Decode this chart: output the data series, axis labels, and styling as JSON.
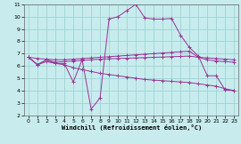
{
  "xlabel": "Windchill (Refroidissement éolien,°C)",
  "xlim": [
    -0.5,
    23.5
  ],
  "ylim": [
    2,
    11
  ],
  "xticks": [
    0,
    1,
    2,
    3,
    4,
    5,
    6,
    7,
    8,
    9,
    10,
    11,
    12,
    13,
    14,
    15,
    16,
    17,
    18,
    19,
    20,
    21,
    22,
    23
  ],
  "yticks": [
    2,
    3,
    4,
    5,
    6,
    7,
    8,
    9,
    10,
    11
  ],
  "background_color": "#c8eced",
  "line_color": "#993399",
  "grid_color": "#9dd4d4",
  "lines": [
    {
      "x": [
        0,
        1,
        2,
        3,
        4,
        5,
        6,
        7,
        8,
        9,
        10,
        11,
        12,
        13,
        14,
        15,
        16,
        17,
        18,
        19,
        20,
        21,
        22,
        23
      ],
      "y": [
        6.7,
        6.1,
        6.5,
        6.2,
        6.2,
        4.7,
        6.5,
        2.5,
        3.4,
        9.8,
        10.0,
        10.5,
        11.0,
        9.9,
        9.8,
        9.8,
        9.85,
        8.5,
        7.5,
        6.8,
        5.2,
        5.2,
        4.05,
        4.0
      ]
    },
    {
      "x": [
        0,
        1,
        2,
        3,
        4,
        5,
        6,
        7,
        8,
        9,
        10,
        11,
        12,
        13,
        14,
        15,
        16,
        17,
        18,
        19,
        20,
        21,
        22,
        23
      ],
      "y": [
        6.7,
        6.6,
        6.55,
        6.5,
        6.5,
        6.55,
        6.6,
        6.65,
        6.7,
        6.75,
        6.8,
        6.85,
        6.9,
        6.95,
        7.0,
        7.05,
        7.1,
        7.15,
        7.2,
        6.7,
        6.65,
        6.6,
        6.55,
        6.5
      ]
    },
    {
      "x": [
        0,
        1,
        2,
        3,
        4,
        5,
        6,
        7,
        8,
        9,
        10,
        11,
        12,
        13,
        14,
        15,
        16,
        17,
        18,
        19,
        20,
        21,
        22,
        23
      ],
      "y": [
        6.7,
        6.1,
        6.35,
        6.2,
        6.1,
        5.85,
        5.7,
        5.55,
        5.4,
        5.3,
        5.2,
        5.1,
        5.0,
        4.9,
        4.85,
        4.8,
        4.75,
        4.7,
        4.65,
        4.55,
        4.45,
        4.35,
        4.15,
        4.0
      ]
    },
    {
      "x": [
        0,
        1,
        2,
        3,
        4,
        5,
        6,
        7,
        8,
        9,
        10,
        11,
        12,
        13,
        14,
        15,
        16,
        17,
        18,
        19,
        20,
        21,
        22,
        23
      ],
      "y": [
        6.7,
        6.1,
        6.5,
        6.3,
        6.35,
        6.4,
        6.45,
        6.5,
        6.55,
        6.58,
        6.6,
        6.62,
        6.65,
        6.67,
        6.7,
        6.72,
        6.75,
        6.77,
        6.8,
        6.7,
        6.5,
        6.4,
        6.35,
        6.3
      ]
    }
  ]
}
